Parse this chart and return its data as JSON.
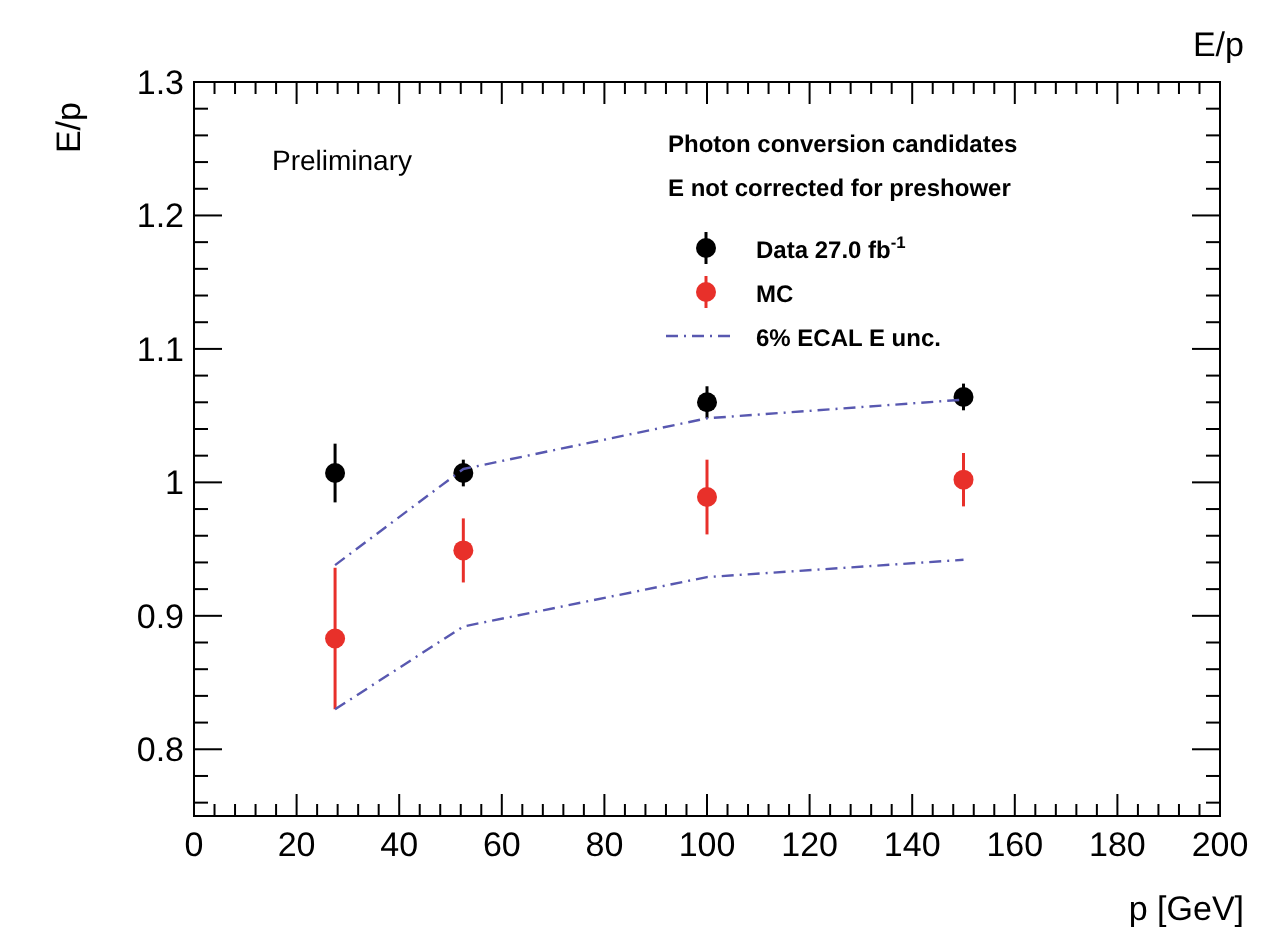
{
  "chart_data": {
    "type": "scatter",
    "title": "E/p",
    "xlabel": "p [GeV]",
    "ylabel": "E/p",
    "annotations": [
      "Preliminary",
      "Photon conversion candidates",
      "E not corrected for preshower"
    ],
    "x": [
      27.5,
      52.5,
      100,
      150
    ],
    "series": [
      {
        "name": "Data 27.0 fb$^{-1}$",
        "color": "#000000",
        "values": [
          1.007,
          1.007,
          1.06,
          1.064
        ],
        "errors": [
          0.022,
          0.01,
          0.012,
          0.01
        ]
      },
      {
        "name": "MC",
        "color": "#e8302a",
        "values": [
          0.883,
          0.949,
          0.989,
          1.002
        ],
        "errors": [
          0.053,
          0.024,
          0.028,
          0.02
        ]
      },
      {
        "name": "6% ECAL E unc.",
        "type": "line",
        "color": "#5858b0",
        "marker": "none",
        "line_style": "dashed",
        "values": [
          0.938,
          1.01,
          1.048,
          1.062
        ]
      },
      {
        "type": "line",
        "color": "#5858b0",
        "marker": "none",
        "line_style": "dashed",
        "values": [
          0.83,
          0.892,
          0.929,
          0.942
        ]
      }
    ],
    "xlim": [
      0,
      200
    ],
    "xticks": [
      0,
      20,
      40,
      60,
      80,
      100,
      120,
      140,
      160,
      180,
      200
    ],
    "ylim": [
      0.75,
      1.3
    ],
    "yticks": [
      0.8,
      0.9,
      1,
      1.1,
      1.2,
      1.3
    ],
    "marker": "circle",
    "legend": "top right",
    "grid": false
  }
}
